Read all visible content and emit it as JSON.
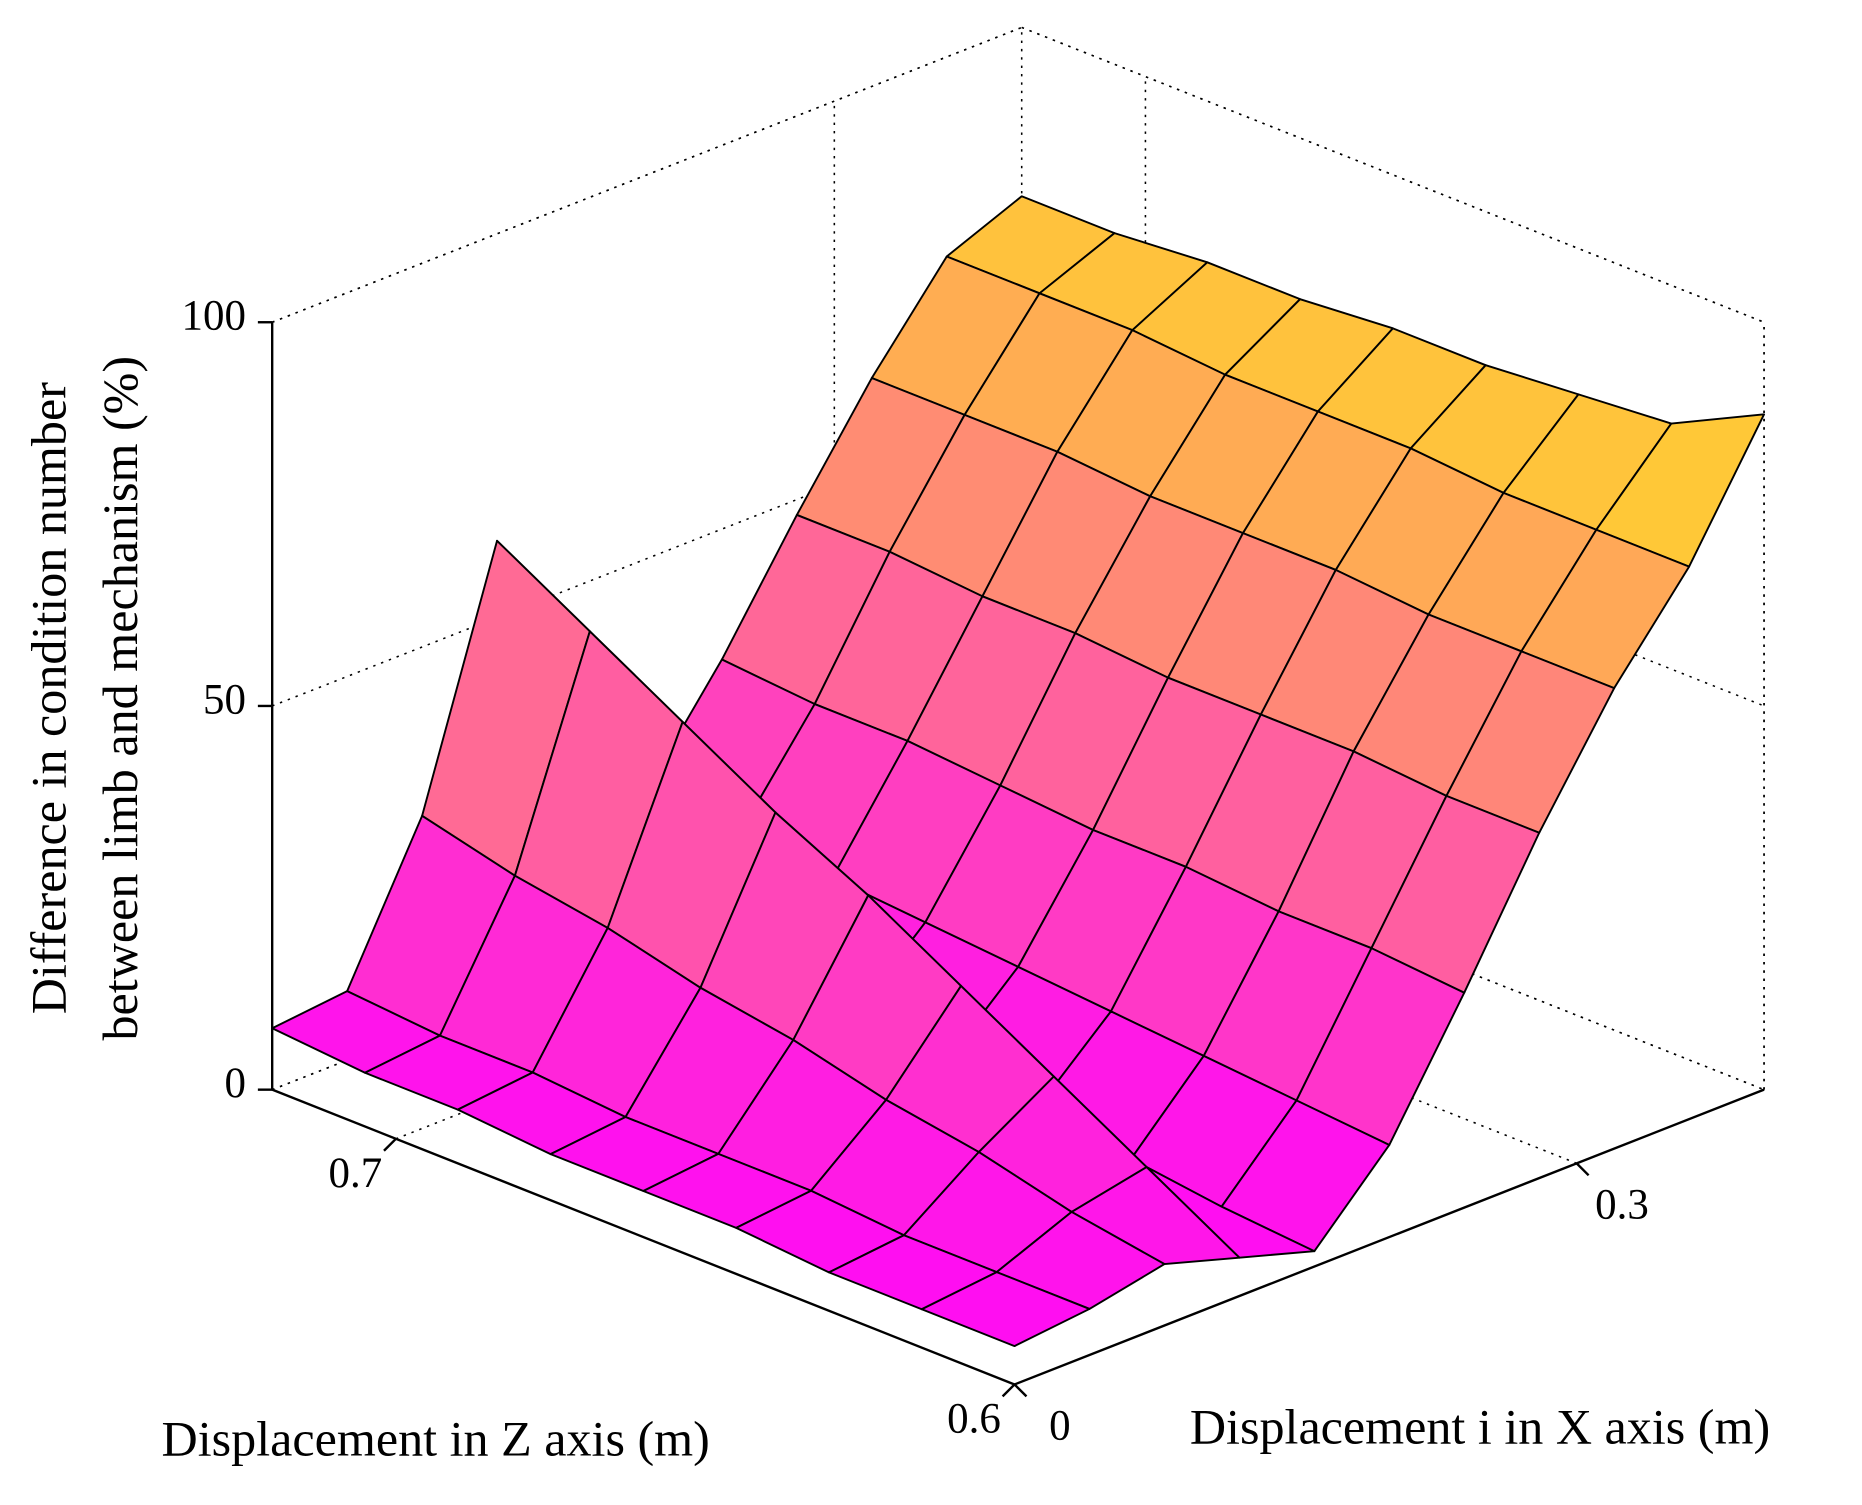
{
  "chart_data": {
    "type": "surface",
    "xlabel": "Displacement i in X axis (m)",
    "ylabel": "Displacement in Z axis (m)",
    "zlabel": [
      "Difference in condition number",
      "between limb and mechanism (%)"
    ],
    "x": [
      0,
      0.04,
      0.08,
      0.12,
      0.16,
      0.2,
      0.24,
      0.28,
      0.32,
      0.36,
      0.4
    ],
    "y": [
      0.6,
      0.615,
      0.63,
      0.645,
      0.66,
      0.675,
      0.69,
      0.705,
      0.72
    ],
    "values": [
      [
        5,
        6,
        8,
        5,
        2,
        12,
        28,
        45,
        60,
        72,
        88
      ],
      [
        5,
        6,
        10,
        12,
        3,
        13,
        29,
        45,
        60,
        72,
        82
      ],
      [
        5,
        6,
        13,
        19,
        4,
        14,
        29,
        46,
        60,
        72,
        81
      ],
      [
        6,
        7,
        15,
        26,
        6,
        15,
        30,
        46,
        61,
        73,
        80
      ],
      [
        6,
        7,
        18,
        33,
        7,
        16,
        30,
        46,
        61,
        73,
        80
      ],
      [
        6,
        7,
        20,
        39,
        8,
        17,
        31,
        47,
        61,
        73,
        79
      ],
      [
        7,
        8,
        23,
        46,
        9,
        18,
        32,
        47,
        62,
        74,
        79
      ],
      [
        7,
        8,
        25,
        53,
        11,
        19,
        32,
        48,
        62,
        74,
        78
      ],
      [
        8,
        9,
        28,
        60,
        12,
        20,
        33,
        48,
        62,
        74,
        78
      ]
    ],
    "xlim": [
      0,
      0.4
    ],
    "xticks": [
      0,
      0.3
    ],
    "ylim": [
      0.6,
      0.72
    ],
    "yticks": [
      0.6,
      0.7
    ],
    "zlim": [
      0,
      100
    ],
    "zticks": [
      0,
      50,
      100
    ],
    "colormap": [
      "#ff00ff",
      "#ffff00"
    ],
    "edge_color": "#000000",
    "grid": true
  }
}
